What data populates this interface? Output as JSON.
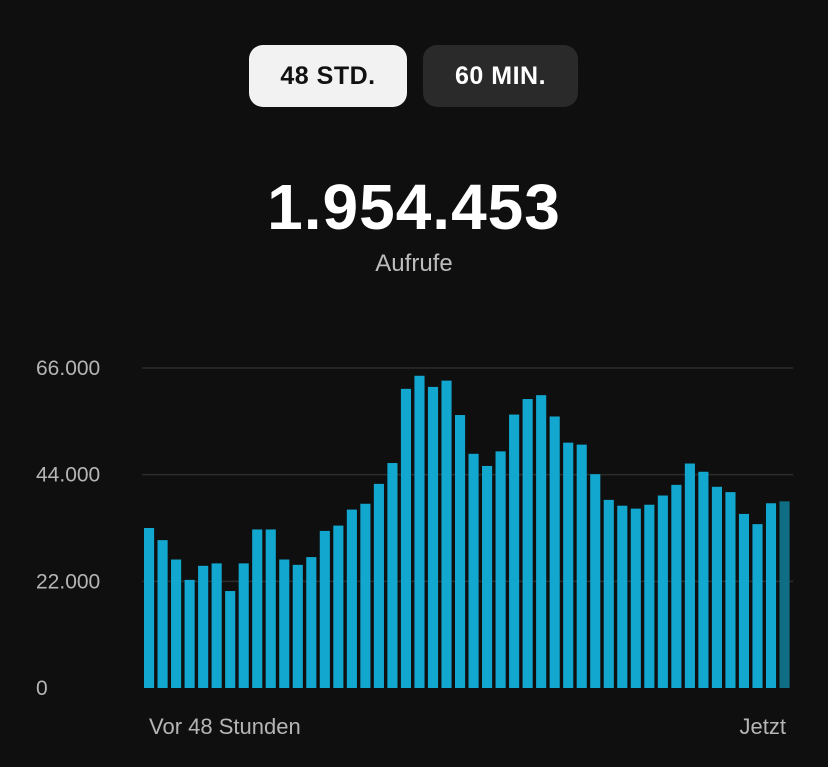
{
  "toggle": {
    "options": [
      "48 STD.",
      "60 MIN."
    ],
    "selected": "48 STD."
  },
  "summary": {
    "total": "1.954.453",
    "label": "Aufrufe"
  },
  "colors": {
    "bar": "#12a7cf",
    "bar_current": "#0f6d84",
    "grid": "#2c2c2c",
    "background": "#0f0f0f"
  },
  "chart_data": {
    "type": "bar",
    "ylim": [
      0,
      66000
    ],
    "yticks": [
      0,
      22000,
      44000,
      66000
    ],
    "ytick_labels": [
      "0",
      "22.000",
      "44.000",
      "66.000"
    ],
    "grid": true,
    "x_start_label": "Vor 48 Stunden",
    "x_end_label": "Jetzt",
    "values": [
      33000,
      30500,
      26500,
      22300,
      25200,
      25700,
      20000,
      25700,
      32700,
      32700,
      26500,
      25400,
      27000,
      32400,
      33500,
      36800,
      38000,
      42100,
      46400,
      61700,
      64400,
      62100,
      63400,
      56300,
      48300,
      45800,
      48800,
      56400,
      59600,
      60400,
      56000,
      50600,
      50200,
      44100,
      38800,
      37600,
      37000,
      37800,
      39700,
      41900,
      46300,
      44600,
      41500,
      40400,
      35900,
      33800,
      38100,
      38500
    ],
    "last_bar_highlighted": true
  }
}
